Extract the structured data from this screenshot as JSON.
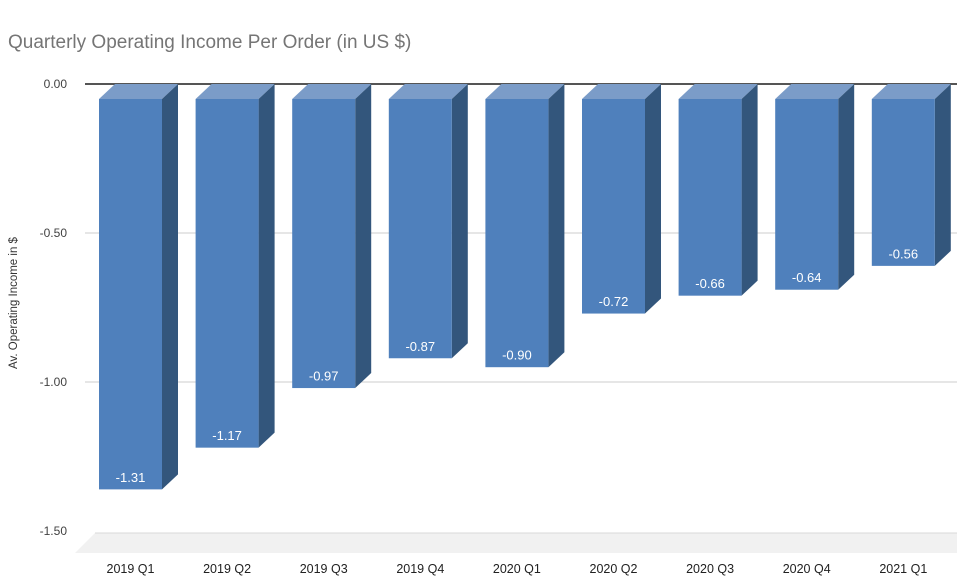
{
  "chart_data": {
    "type": "bar",
    "style": "3d-column-negative",
    "title": "Quarterly Operating Income Per Order (in US $)",
    "xlabel": "",
    "ylabel": "Av. Operating Income in $",
    "categories": [
      "2019 Q1",
      "2019 Q2",
      "2019 Q3",
      "2019 Q4",
      "2020 Q1",
      "2020 Q2",
      "2020 Q3",
      "2020 Q4",
      "2021 Q1"
    ],
    "values": [
      -1.31,
      -1.17,
      -0.97,
      -0.87,
      -0.9,
      -0.72,
      -0.66,
      -0.64,
      -0.56
    ],
    "data_labels": [
      "-1.31",
      "-1.17",
      "-0.97",
      "-0.87",
      "-0.90",
      "-0.72",
      "-0.66",
      "-0.64",
      "-0.56"
    ],
    "ylim": [
      -1.5,
      0
    ],
    "yticks": [
      0,
      -0.5,
      -1.0,
      -1.5
    ],
    "ytick_labels": [
      "0.00",
      "-0.50",
      "-1.00",
      "-1.50"
    ],
    "grid": true,
    "legend": "none",
    "colors": {
      "bar_front": "#4f80bc",
      "bar_side": "#33567c",
      "bar_top": "#7b9cc8",
      "label_text": "#ffffff",
      "title_text": "#757575",
      "axis_text": "#424242",
      "category_text": "#212121",
      "grid_line": "#cccccc",
      "zero_line": "#3d3d3d",
      "floor_fill": "#f1f1f1",
      "floor_edge": "#d9d9d9",
      "background": "#ffffff"
    }
  }
}
